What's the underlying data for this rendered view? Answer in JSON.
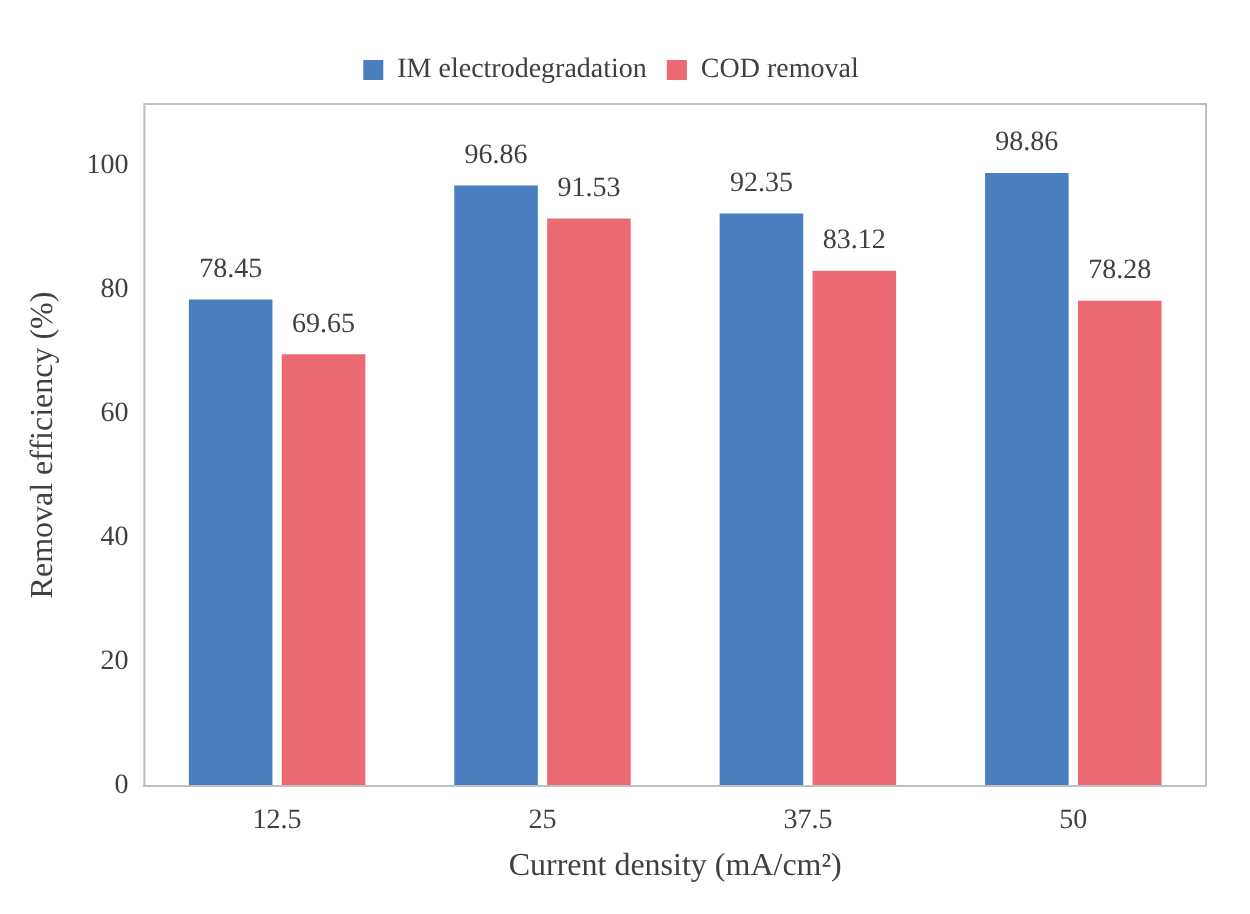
{
  "chart_data": {
    "type": "bar",
    "xlabel": "Current density (mA/cm²)",
    "ylabel": "Removal efficiency (%)",
    "categories": [
      "12.5",
      "25",
      "37.5",
      "50"
    ],
    "series": [
      {
        "name": "IM electrodegradation",
        "color": "#4a7ebf",
        "values": [
          78.45,
          96.86,
          92.35,
          98.86
        ]
      },
      {
        "name": "COD removal",
        "color": "#ec6a72",
        "values": [
          69.65,
          91.53,
          83.12,
          78.28
        ]
      }
    ],
    "ylim": [
      0,
      110
    ],
    "yticks": [
      0,
      20,
      40,
      60,
      80,
      100
    ],
    "grid": false,
    "legend": "top",
    "data_labels": true
  }
}
